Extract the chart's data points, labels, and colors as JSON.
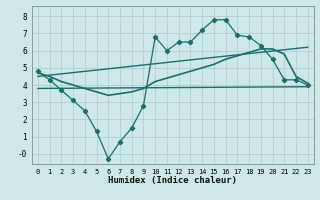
{
  "xlabel": "Humidex (Indice chaleur)",
  "xlim": [
    -0.5,
    23.5
  ],
  "ylim": [
    -0.6,
    8.6
  ],
  "xticks": [
    0,
    1,
    2,
    3,
    4,
    5,
    6,
    7,
    8,
    9,
    10,
    11,
    12,
    13,
    14,
    15,
    16,
    17,
    18,
    19,
    20,
    21,
    22,
    23
  ],
  "yticks": [
    0,
    1,
    2,
    3,
    4,
    5,
    6,
    7,
    8
  ],
  "ytick_labels": [
    "-0",
    "1",
    "2",
    "3",
    "4",
    "5",
    "6",
    "7",
    "8"
  ],
  "bg_color": "#cce8e8",
  "line_color": "#1a6e6e",
  "grid_color": "#aacccc",
  "line1_x": [
    0,
    1,
    2,
    3,
    4,
    5,
    6,
    7,
    8,
    9,
    10,
    11,
    12,
    13,
    14,
    15,
    16,
    17,
    18,
    19,
    20,
    21,
    22,
    23
  ],
  "line1_y": [
    4.8,
    4.3,
    3.7,
    3.1,
    2.5,
    1.3,
    -0.3,
    0.7,
    1.5,
    2.8,
    6.8,
    6.0,
    6.5,
    6.5,
    7.2,
    7.8,
    7.8,
    6.9,
    6.8,
    6.3,
    5.5,
    4.3,
    4.3,
    4.0
  ],
  "line2_x": [
    0,
    1,
    2,
    3,
    4,
    5,
    6,
    7,
    8,
    9,
    10,
    11,
    12,
    13,
    14,
    15,
    16,
    17,
    18,
    19,
    20,
    21,
    22,
    23
  ],
  "line2_y": [
    4.7,
    4.5,
    4.2,
    4.0,
    3.8,
    3.6,
    3.4,
    3.5,
    3.6,
    3.8,
    4.2,
    4.4,
    4.6,
    4.8,
    5.0,
    5.2,
    5.5,
    5.7,
    5.9,
    6.1,
    6.1,
    5.8,
    4.5,
    4.1
  ],
  "line3_x": [
    0,
    23
  ],
  "line3_y": [
    3.8,
    3.9
  ],
  "line4_x": [
    0,
    23
  ],
  "line4_y": [
    4.5,
    6.2
  ]
}
